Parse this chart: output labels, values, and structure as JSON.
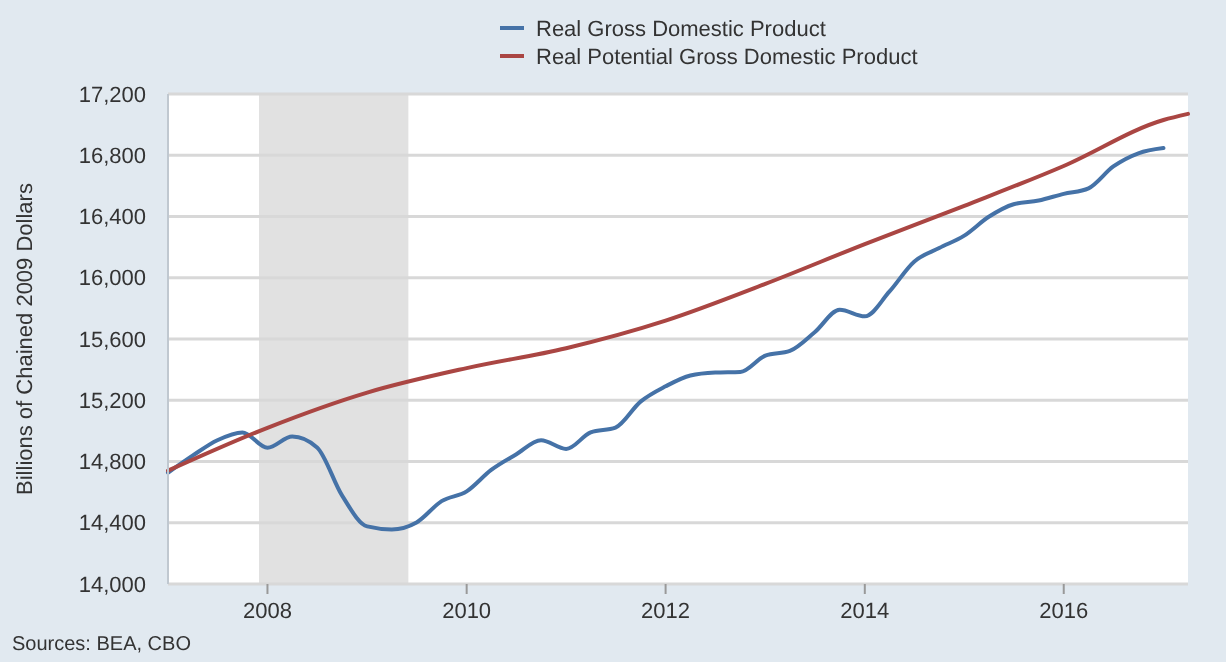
{
  "chart_data": {
    "type": "line",
    "ylabel": "Billions of Chained 2009 Dollars",
    "annotations": [
      "Sources: BEA, CBO"
    ],
    "xlim": [
      "2007-01",
      "2017-04"
    ],
    "xticks": [
      "2008",
      "2010",
      "2012",
      "2014",
      "2016"
    ],
    "ylim": [
      14000,
      17200
    ],
    "yticks": [
      {
        "value": 14000,
        "label": "14,000"
      },
      {
        "value": 14400,
        "label": "14,400"
      },
      {
        "value": 14800,
        "label": "14,800"
      },
      {
        "value": 15200,
        "label": "15,200"
      },
      {
        "value": 15600,
        "label": "15,600"
      },
      {
        "value": 16000,
        "label": "16,000"
      },
      {
        "value": 16400,
        "label": "16,400"
      },
      {
        "value": 16800,
        "label": "16,800"
      },
      {
        "value": 17200,
        "label": "17,200"
      }
    ],
    "grid": "y",
    "legend": "top",
    "marker": "none",
    "line_style": "solid",
    "bands": [
      {
        "axis": "x",
        "from": "2007-12",
        "to": "2009-06",
        "color": "#e1e1e1"
      }
    ],
    "series": [
      {
        "name": "Real Gross Domestic Product",
        "color": "#4572a7",
        "x": [
          "2007-01",
          "2007-04",
          "2007-07",
          "2007-10",
          "2008-01",
          "2008-04",
          "2008-07",
          "2008-10",
          "2009-01",
          "2009-04",
          "2009-07",
          "2009-10",
          "2010-01",
          "2010-04",
          "2010-07",
          "2010-10",
          "2011-01",
          "2011-04",
          "2011-07",
          "2011-10",
          "2012-01",
          "2012-04",
          "2012-07",
          "2012-10",
          "2013-01",
          "2013-04",
          "2013-07",
          "2013-10",
          "2014-01",
          "2014-04",
          "2014-07",
          "2014-10",
          "2015-01",
          "2015-04",
          "2015-07",
          "2015-10",
          "2016-01",
          "2016-04",
          "2016-07",
          "2016-10",
          "2017-01"
        ],
        "values": [
          14727,
          14838,
          14939,
          14990,
          14890,
          14963,
          14892,
          14577,
          14376,
          14356,
          14402,
          14541,
          14605,
          14745,
          14846,
          14939,
          14882,
          14990,
          15021,
          15191,
          15291,
          15362,
          15381,
          15385,
          15492,
          15522,
          15644,
          15791,
          15748,
          15909,
          16105,
          16194,
          16275,
          16398,
          16480,
          16504,
          16548,
          16584,
          16727,
          16813,
          16847
        ]
      },
      {
        "name": "Real Potential Gross Domestic Product",
        "color": "#aa4643",
        "x": [
          "2007-01",
          "2008-01",
          "2009-01",
          "2010-01",
          "2011-01",
          "2012-01",
          "2013-01",
          "2014-01",
          "2015-01",
          "2016-01",
          "2017-01",
          "2017-04"
        ],
        "values": [
          14740,
          15020,
          15250,
          15410,
          15540,
          15720,
          15960,
          16220,
          16470,
          16730,
          17030,
          17070
        ]
      }
    ]
  }
}
